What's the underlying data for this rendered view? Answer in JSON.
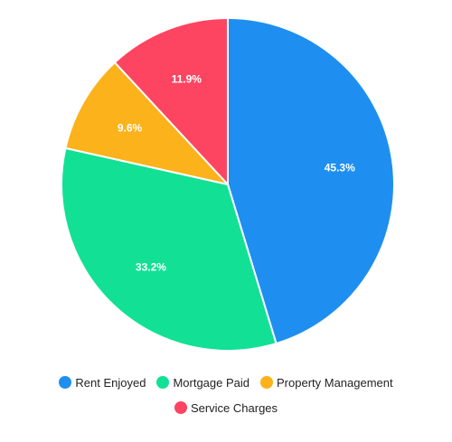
{
  "chart_data": {
    "type": "pie",
    "categories": [
      "Rent Enjoyed",
      "Mortgage Paid",
      "Property Management",
      "Service Charges"
    ],
    "values": [
      45.3,
      33.2,
      9.6,
      11.9
    ],
    "value_labels": [
      "45.3%",
      "33.2%",
      "9.6%",
      "11.9%"
    ],
    "colors": [
      "#1e8ff0",
      "#12e195",
      "#fbb21b",
      "#fd4561"
    ],
    "start_angle": "12 o'clock",
    "direction": "clockwise",
    "legend_position": "bottom"
  }
}
